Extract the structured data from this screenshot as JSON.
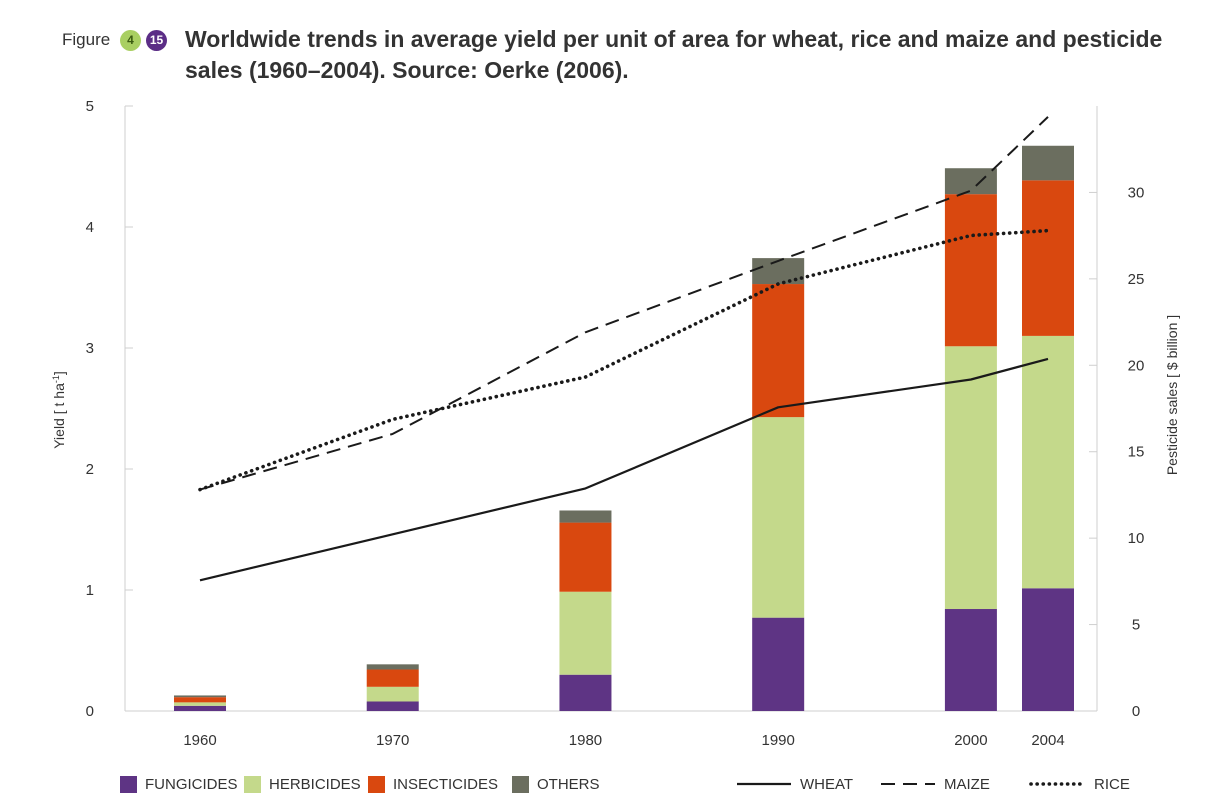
{
  "figure": {
    "prefix": "Figure",
    "chapter": "4",
    "number": "15",
    "title": "Worldwide trends in average yield per unit of area for wheat, rice and maize and pesticide sales (1960–2004). Source: Oerke (2006)."
  },
  "chart_data": {
    "type": "bar",
    "categories": [
      "1960",
      "1970",
      "1980",
      "1990",
      "2000",
      "2004"
    ],
    "x": [
      1960,
      1970,
      1980,
      1990,
      2000,
      2004
    ],
    "stacked": true,
    "left_axis": {
      "label_main": "Yield [ t ha",
      "label_sup": "-1",
      "label_end": "]",
      "ylim": [
        0,
        5
      ],
      "ticks": [
        "0",
        "1",
        "2",
        "3",
        "4",
        "5"
      ]
    },
    "right_axis": {
      "label": "Pesticide sales  [ $ billion ]",
      "ylim": [
        0,
        35
      ],
      "ticks": [
        "0",
        "5",
        "10",
        "15",
        "20",
        "25",
        "30"
      ]
    },
    "bar_series": [
      {
        "name": "FUNGICIDES",
        "color": "#5e3484",
        "values": [
          0.3,
          0.55,
          2.1,
          5.4,
          5.9,
          7.1
        ]
      },
      {
        "name": "HERBICIDES",
        "color": "#c4d98b",
        "values": [
          0.2,
          0.85,
          4.8,
          11.6,
          15.2,
          14.6
        ]
      },
      {
        "name": "INSECTICIDES",
        "color": "#d9480f",
        "values": [
          0.3,
          1.0,
          4.0,
          7.7,
          8.8,
          9.0
        ]
      },
      {
        "name": "OTHERS",
        "color": "#6b6e5f",
        "values": [
          0.1,
          0.3,
          0.7,
          1.5,
          1.5,
          2.0
        ]
      }
    ],
    "line_series": [
      {
        "name": "WHEAT",
        "style": "solid",
        "values": [
          1.08,
          1.46,
          1.84,
          2.51,
          2.74,
          2.91
        ]
      },
      {
        "name": "MAIZE",
        "style": "dashed",
        "values": [
          1.83,
          2.29,
          3.13,
          3.72,
          4.3,
          4.91
        ]
      },
      {
        "name": "RICE",
        "style": "dotted",
        "values": [
          1.83,
          2.41,
          2.76,
          3.53,
          3.93,
          3.97
        ]
      }
    ],
    "legend_position": "bottom",
    "grid": false
  }
}
